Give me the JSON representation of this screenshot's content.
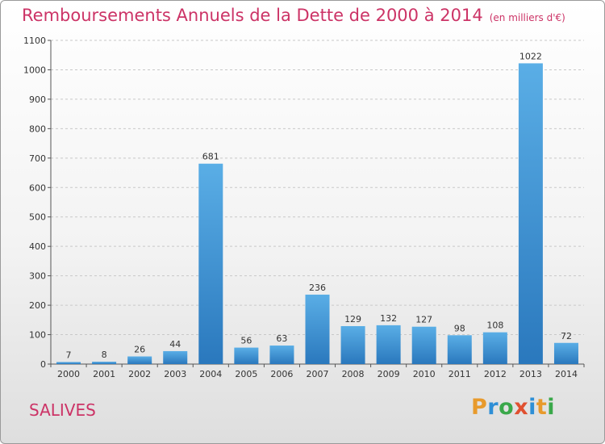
{
  "title": "Remboursements Annuels de la Dette de 2000 à 2014",
  "subtitle": "(en milliers d'€)",
  "commune": "SALIVES",
  "logo": {
    "letters": [
      "P",
      "r",
      "o",
      "x",
      "i",
      "t",
      "i"
    ],
    "colors": [
      "#e89a2c",
      "#2e8fd6",
      "#3aa84a",
      "#e05030",
      "#2e8fd6",
      "#e89a2c",
      "#3aa84a"
    ]
  },
  "chart_data": {
    "type": "bar",
    "categories": [
      "2000",
      "2001",
      "2002",
      "2003",
      "2004",
      "2005",
      "2006",
      "2007",
      "2008",
      "2009",
      "2010",
      "2011",
      "2012",
      "2013",
      "2014"
    ],
    "values": [
      7,
      8,
      26,
      44,
      681,
      56,
      63,
      236,
      129,
      132,
      127,
      98,
      108,
      1022,
      72
    ],
    "ylim": [
      0,
      1100
    ],
    "yticks": [
      0,
      100,
      200,
      300,
      400,
      500,
      600,
      700,
      800,
      900,
      1000,
      1100
    ],
    "grid": true,
    "bar_color": "#3d8fd0"
  }
}
